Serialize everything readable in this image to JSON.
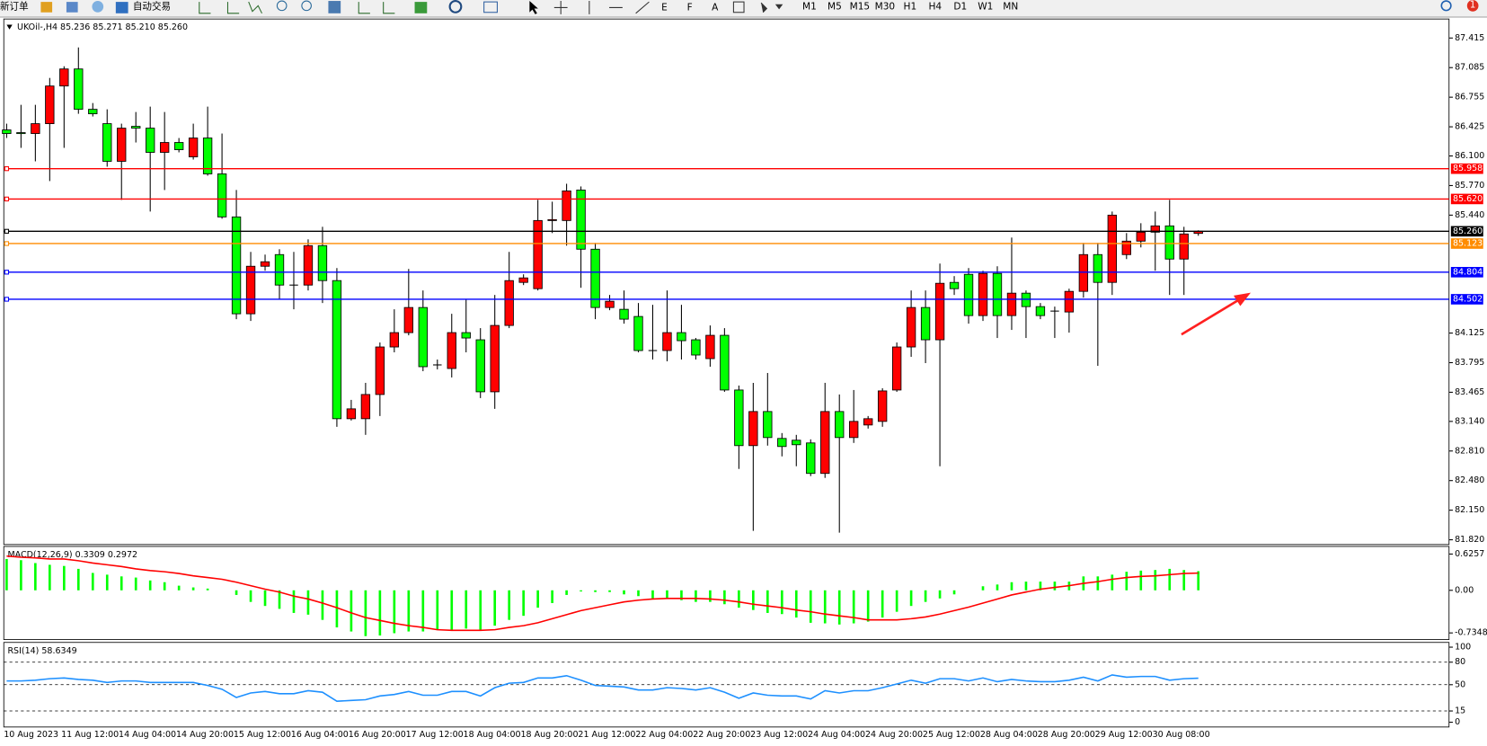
{
  "toolbar": {
    "new_order": "新订单",
    "auto_trading": "自动交易",
    "timeframes": [
      "M1",
      "M5",
      "M15",
      "M30",
      "H1",
      "H4",
      "D1",
      "W1",
      "MN"
    ],
    "badge": "1"
  },
  "chart_data": [
    {
      "type": "candlestick",
      "title": "UKOil-,H4  85.236 85.271 85.210 85.260",
      "categories": [
        "10 Aug 2023",
        null,
        null,
        null,
        "11 Aug 12:00",
        null,
        null,
        null,
        "14 Aug 04:00",
        null,
        null,
        null,
        "14 Aug 20:00",
        null,
        null,
        null,
        "15 Aug 12:00",
        null,
        null,
        null,
        "16 Aug 04:00",
        null,
        null,
        null,
        "16 Aug 20:00",
        null,
        null,
        null,
        "17 Aug 12:00",
        null,
        null,
        null,
        "18 Aug 04:00",
        null,
        null,
        null,
        "18 Aug 20:00",
        null,
        null,
        null,
        "21 Aug 12:00",
        null,
        null,
        null,
        "22 Aug 04:00",
        null,
        null,
        null,
        "22 Aug 20:00",
        null,
        null,
        null,
        "23 Aug 12:00",
        null,
        null,
        null,
        "24 Aug 04:00",
        null,
        null,
        null,
        "24 Aug 20:00",
        null,
        null,
        null,
        "25 Aug 12:00",
        null,
        null,
        null,
        "28 Aug 04:00",
        null,
        null,
        null,
        "28 Aug 20:00",
        null,
        null,
        null,
        "29 Aug 12:00",
        null,
        null,
        null,
        "30 Aug 08:00",
        null,
        null,
        null
      ],
      "open": [
        86.39,
        86.36,
        86.35,
        86.46,
        86.88,
        87.07,
        86.62,
        86.46,
        86.04,
        86.43,
        86.41,
        86.14,
        86.25,
        86.09,
        86.3,
        85.9,
        85.42,
        84.34,
        84.87,
        85.0,
        84.66,
        84.66,
        85.1,
        84.71,
        83.17,
        83.17,
        83.44,
        83.97,
        84.13,
        84.41,
        83.77,
        83.73,
        84.13,
        84.05,
        83.47,
        84.21,
        84.69,
        84.62,
        85.38,
        85.38,
        85.72,
        85.06,
        84.41,
        84.39,
        84.31,
        83.93,
        83.93,
        84.13,
        84.05,
        83.84,
        84.1,
        83.49,
        82.87,
        83.25,
        82.95,
        82.93,
        82.9,
        82.56,
        83.25,
        82.96,
        83.1,
        83.14,
        83.49,
        83.97,
        84.41,
        84.05,
        84.69,
        84.78,
        84.32,
        84.79,
        84.32,
        84.57,
        84.42,
        84.37,
        84.36,
        84.59,
        85.0,
        84.69,
        85.0,
        85.15,
        85.25,
        85.32,
        84.95,
        85.236
      ],
      "high": [
        86.46,
        86.67,
        86.67,
        86.97,
        87.1,
        87.31,
        86.69,
        86.62,
        86.46,
        86.59,
        86.65,
        86.59,
        86.3,
        86.46,
        86.65,
        86.35,
        85.72,
        85.03,
        85.0,
        85.06,
        85.03,
        85.17,
        85.31,
        84.85,
        83.38,
        83.57,
        84.02,
        84.39,
        84.84,
        84.6,
        83.83,
        84.34,
        84.5,
        84.18,
        84.55,
        85.03,
        84.78,
        85.61,
        85.59,
        85.79,
        85.76,
        85.13,
        84.55,
        84.6,
        84.46,
        84.44,
        84.6,
        84.44,
        84.07,
        84.21,
        84.18,
        83.54,
        83.57,
        83.68,
        83.01,
        82.99,
        82.94,
        83.57,
        83.44,
        83.49,
        83.2,
        83.51,
        84.02,
        84.6,
        84.6,
        84.9,
        84.76,
        84.85,
        84.82,
        84.87,
        85.19,
        84.6,
        84.46,
        84.42,
        84.62,
        85.13,
        85.13,
        85.48,
        85.24,
        85.35,
        85.48,
        85.61,
        85.31,
        85.271
      ],
      "low": [
        86.3,
        86.19,
        86.04,
        85.82,
        86.19,
        86.57,
        86.54,
        85.98,
        85.61,
        86.25,
        85.48,
        85.72,
        86.14,
        86.06,
        85.88,
        85.4,
        84.28,
        84.26,
        84.82,
        84.5,
        84.39,
        84.6,
        84.46,
        83.08,
        83.15,
        82.99,
        83.2,
        83.91,
        84.1,
        83.7,
        83.72,
        83.63,
        83.91,
        83.4,
        83.28,
        84.18,
        84.66,
        84.6,
        85.24,
        85.1,
        84.63,
        84.28,
        84.38,
        84.23,
        83.91,
        83.83,
        83.81,
        83.83,
        83.83,
        83.75,
        83.47,
        82.61,
        81.92,
        82.87,
        82.75,
        82.64,
        82.53,
        82.51,
        81.9,
        82.9,
        83.06,
        83.08,
        83.47,
        83.86,
        83.79,
        82.64,
        84.55,
        84.23,
        84.26,
        84.07,
        84.16,
        84.07,
        84.28,
        84.07,
        84.13,
        84.52,
        83.76,
        84.55,
        84.95,
        85.08,
        84.82,
        84.55,
        84.55,
        85.21
      ],
      "close": [
        86.35,
        86.35,
        86.46,
        86.88,
        87.07,
        86.62,
        86.57,
        86.04,
        86.41,
        86.41,
        86.14,
        86.25,
        86.17,
        86.3,
        85.9,
        85.42,
        84.34,
        84.87,
        84.92,
        84.66,
        84.66,
        85.1,
        84.71,
        83.17,
        83.28,
        83.44,
        83.97,
        84.13,
        84.41,
        83.75,
        83.77,
        84.13,
        84.07,
        83.47,
        84.21,
        84.71,
        84.74,
        85.38,
        85.39,
        85.71,
        85.06,
        84.41,
        84.48,
        84.28,
        83.93,
        83.93,
        84.13,
        84.04,
        83.88,
        84.1,
        83.49,
        82.87,
        83.25,
        82.96,
        82.86,
        82.88,
        82.56,
        83.25,
        82.96,
        83.14,
        83.17,
        83.48,
        83.97,
        84.41,
        84.05,
        84.68,
        84.62,
        84.32,
        84.79,
        84.32,
        84.57,
        84.42,
        84.32,
        84.37,
        84.59,
        85.0,
        84.69,
        85.44,
        85.15,
        85.25,
        85.32,
        84.95,
        85.23,
        85.26
      ],
      "up_color": "#ff0000",
      "down_color": "#00ff00",
      "ylim": [
        81.82,
        87.415
      ],
      "yticks": [
        87.415,
        87.085,
        86.755,
        86.425,
        {
          "value": 86.1,
          "label": "86.100"
        },
        {
          "value": 85.77,
          "label": "85.770"
        },
        {
          "value": 85.44,
          "label": "85.440"
        },
        84.125,
        83.795,
        83.465,
        {
          "value": 83.14,
          "label": "83.140"
        },
        {
          "value": 82.81,
          "label": "82.810"
        },
        {
          "value": 82.48,
          "label": "82.480"
        },
        {
          "value": 82.15,
          "label": "82.150"
        },
        {
          "value": 81.82,
          "label": "81.820"
        }
      ],
      "levels": [
        {
          "value": 85.958,
          "label": "85.958",
          "color": "#ff0000"
        },
        {
          "value": 85.62,
          "label": "85.620",
          "color": "#ff0000"
        },
        {
          "value": 85.26,
          "label": "85.260",
          "color": "#000000"
        },
        {
          "value": 85.123,
          "label": "85.123",
          "color": "#ff8c00"
        },
        {
          "value": 84.804,
          "label": "84.804",
          "color": "#0000ff"
        },
        {
          "value": 84.502,
          "label": "84.502",
          "color": "#0000ff"
        }
      ]
    },
    {
      "type": "macd",
      "title": "MACD(12,26,9) 0.3309 0.2972",
      "series": [
        {
          "kind": "bar",
          "color": "#00ff00",
          "values": [
            0.54,
            0.52,
            0.47,
            0.44,
            0.42,
            0.37,
            0.3,
            0.27,
            0.24,
            0.22,
            0.17,
            0.14,
            0.08,
            0.05,
            0.03,
            0,
            -0.08,
            -0.2,
            -0.27,
            -0.32,
            -0.39,
            -0.42,
            -0.51,
            -0.64,
            -0.71,
            -0.79,
            -0.78,
            -0.74,
            -0.71,
            -0.71,
            -0.68,
            -0.68,
            -0.66,
            -0.68,
            -0.61,
            -0.51,
            -0.44,
            -0.3,
            -0.22,
            -0.08,
            -0.02,
            -0.03,
            -0.03,
            -0.07,
            -0.1,
            -0.14,
            -0.14,
            -0.17,
            -0.2,
            -0.2,
            -0.24,
            -0.3,
            -0.34,
            -0.39,
            -0.41,
            -0.47,
            -0.56,
            -0.57,
            -0.59,
            -0.57,
            -0.54,
            -0.47,
            -0.37,
            -0.27,
            -0.2,
            -0.14,
            -0.07,
            0,
            0.07,
            0.1,
            0.14,
            0.15,
            0.15,
            0.15,
            0.15,
            0.24,
            0.24,
            0.27,
            0.32,
            0.34,
            0.35,
            0.37,
            0.35,
            0.3309
          ]
        },
        {
          "kind": "line",
          "color": "#ff0000",
          "values": [
            0.59,
            0.57,
            0.56,
            0.54,
            0.54,
            0.51,
            0.47,
            0.44,
            0.41,
            0.37,
            0.34,
            0.32,
            0.29,
            0.25,
            0.22,
            0.19,
            0.14,
            0.08,
            0.02,
            -0.03,
            -0.1,
            -0.15,
            -0.22,
            -0.3,
            -0.39,
            -0.47,
            -0.52,
            -0.57,
            -0.61,
            -0.64,
            -0.68,
            -0.69,
            -0.69,
            -0.69,
            -0.68,
            -0.64,
            -0.61,
            -0.56,
            -0.49,
            -0.42,
            -0.35,
            -0.3,
            -0.25,
            -0.2,
            -0.17,
            -0.15,
            -0.14,
            -0.14,
            -0.14,
            -0.15,
            -0.17,
            -0.2,
            -0.24,
            -0.27,
            -0.3,
            -0.34,
            -0.37,
            -0.41,
            -0.44,
            -0.47,
            -0.51,
            -0.51,
            -0.51,
            -0.49,
            -0.46,
            -0.41,
            -0.35,
            -0.29,
            -0.22,
            -0.15,
            -0.08,
            -0.03,
            0.02,
            0.05,
            0.08,
            0.12,
            0.15,
            0.19,
            0.22,
            0.24,
            0.25,
            0.27,
            0.29,
            0.2972
          ]
        }
      ],
      "ylim": [
        -0.7348,
        0.6257
      ],
      "yticks": [
        0.6257,
        {
          "value": 0,
          "label": "0.00"
        },
        -0.7348
      ]
    },
    {
      "type": "line",
      "title": "RSI(14) 58.6349",
      "series": [
        {
          "color": "#1e90ff",
          "values": [
            55,
            55,
            56,
            58,
            59,
            57,
            56,
            53,
            55,
            55,
            53,
            53,
            53,
            53,
            49,
            44,
            33,
            39,
            41,
            38,
            38,
            42,
            40,
            28,
            29,
            30,
            35,
            37,
            41,
            36,
            36,
            41,
            41,
            35,
            46,
            52,
            53,
            59,
            59,
            62,
            56,
            49,
            48,
            47,
            43,
            43,
            46,
            45,
            43,
            46,
            40,
            32,
            39,
            36,
            35,
            35,
            31,
            42,
            39,
            42,
            42,
            46,
            51,
            56,
            52,
            58,
            58,
            55,
            59,
            54,
            57,
            55,
            54,
            54,
            56,
            60,
            55,
            63,
            60,
            61,
            61,
            56,
            58,
            58.6349
          ]
        }
      ],
      "ylim": [
        0,
        100
      ],
      "yticks": [
        100,
        80,
        50,
        15,
        0
      ],
      "dashed_grid": true
    }
  ]
}
